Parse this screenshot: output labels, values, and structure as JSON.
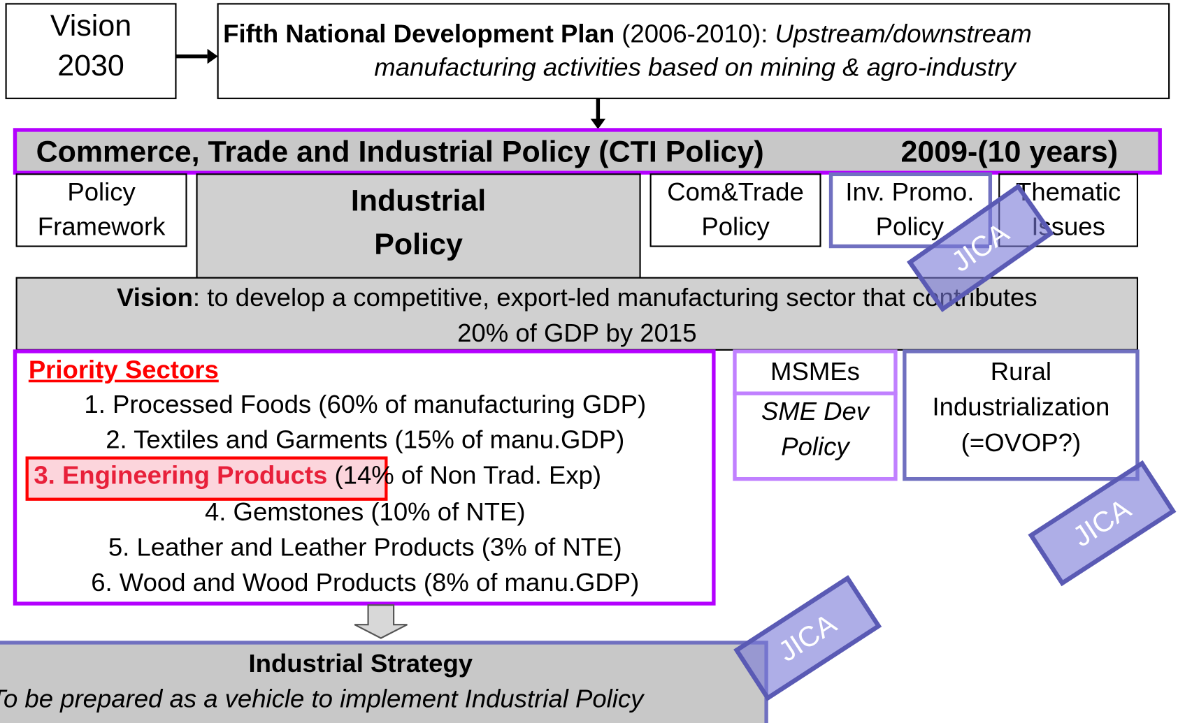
{
  "vision2030": {
    "lines": [
      "Vision",
      "2030"
    ]
  },
  "plan": {
    "title": "Fifth National Development Plan",
    "period": " (2006-2010): ",
    "focus_line1": "Upstream/downstream",
    "focus_line2": "manufacturing activities based on mining & agro-industry"
  },
  "cti": {
    "title": "Commerce, Trade and Industrial Policy (CTI Policy)",
    "period": "2009-(10 years)"
  },
  "policies": [
    {
      "lines": [
        "Policy",
        "Framework"
      ]
    },
    {
      "lines": [
        "Industrial",
        "Policy"
      ]
    },
    {
      "lines": [
        "Com&Trade",
        "Policy"
      ]
    },
    {
      "lines": [
        "Inv. Promo.",
        "Policy"
      ]
    },
    {
      "lines": [
        "Thematic",
        "Issues"
      ]
    }
  ],
  "vision": {
    "label": "Vision",
    "line1": ": to develop a competitive, export-led manufacturing sector that contributes",
    "line2": "20% of GDP by 2015"
  },
  "priority": {
    "heading": "Priority Sectors",
    "items": [
      "1. Processed Foods (60% of manufacturing GDP)",
      "2. Textiles and Garments (15% of manu.GDP)",
      "3. Engineering Products",
      "4. Gemstones (10% of NTE)",
      "5. Leather and Leather Products (3% of NTE)",
      "6. Wood and Wood Products (8% of manu.GDP)"
    ],
    "item3_detail": " (14% of Non Trad. Exp)"
  },
  "msme": {
    "title": "MSMEs",
    "policy_lines": [
      "SME Dev",
      "Policy"
    ]
  },
  "rural": {
    "lines": [
      "Rural",
      "Industrialization",
      "(=OVOP?)"
    ]
  },
  "strategy": {
    "title": "Industrial Strategy",
    "note": "To be prepared as a vehicle to implement Industrial Policy"
  },
  "stamps": [
    "JICA",
    "JICA",
    "JICA"
  ]
}
